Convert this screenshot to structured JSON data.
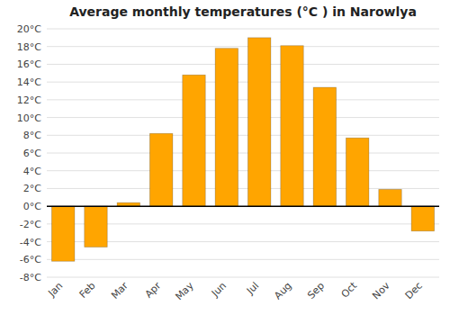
{
  "chart_data": {
    "type": "bar",
    "title": "Average monthly temperatures (°C ) in Narowlya",
    "categories": [
      "Jan",
      "Feb",
      "Mar",
      "Apr",
      "May",
      "Jun",
      "Jul",
      "Aug",
      "Sep",
      "Oct",
      "Nov",
      "Dec"
    ],
    "values": [
      -6.2,
      -4.6,
      0.4,
      8.2,
      14.8,
      17.8,
      19.0,
      18.1,
      13.4,
      7.7,
      1.9,
      -2.8
    ],
    "color": "#FFA500",
    "ylim": [
      -8,
      20
    ],
    "yticks": [
      {
        "value": -8,
        "label": "-8°C"
      },
      {
        "value": -6,
        "label": "-6°C"
      },
      {
        "value": -4,
        "label": "-4°C"
      },
      {
        "value": -2,
        "label": "-2°C"
      },
      {
        "value": 0,
        "label": "0°C"
      },
      {
        "value": 2,
        "label": "2°C"
      },
      {
        "value": 4,
        "label": "4°C"
      },
      {
        "value": 6,
        "label": "6°C"
      },
      {
        "value": 8,
        "label": "8°C"
      },
      {
        "value": 10,
        "label": "10°C"
      },
      {
        "value": 12,
        "label": "12°C"
      },
      {
        "value": 14,
        "label": "14°C"
      },
      {
        "value": 16,
        "label": "16°C"
      },
      {
        "value": 18,
        "label": "18°C"
      },
      {
        "value": 20,
        "label": "20°C"
      }
    ],
    "grid": true
  }
}
